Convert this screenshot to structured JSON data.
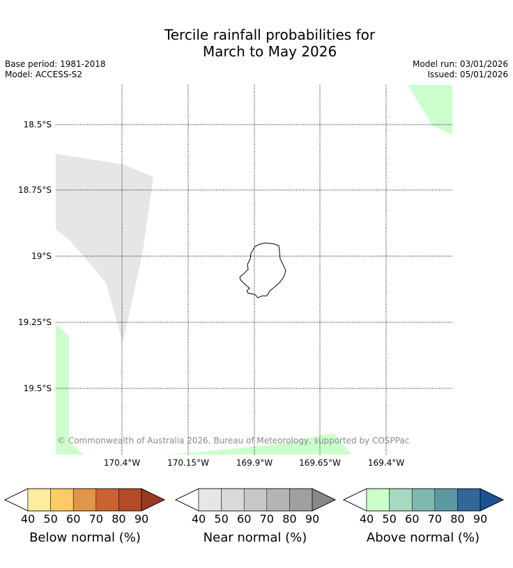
{
  "title": {
    "line1": "Tercile rainfall probabilities for",
    "line2": "March to May 2026"
  },
  "meta": {
    "base_period": "Base period: 1981-2018",
    "model": "Model: ACCESS-S2",
    "model_run": "Model run: 03/01/2026",
    "issued": "Issued: 05/01/2026"
  },
  "map": {
    "lat_labels": [
      "18.5°S",
      "18.75°S",
      "19°S",
      "19.25°S",
      "19.5°S"
    ],
    "lon_labels": [
      "170.4°W",
      "170.15°W",
      "169.9°W",
      "169.65°W",
      "169.4°W"
    ],
    "copyright": "© Commonwealth of Australia 2026, Bureau of Meteorology, supported by COSPPac",
    "colors": {
      "near_normal_fill": "#e6e6e6",
      "above_normal_fill": "#ccffcc",
      "coastline": "#000000"
    }
  },
  "legends": [
    {
      "title": "Below normal (%)",
      "ticks": [
        "40",
        "50",
        "60",
        "70",
        "80",
        "90"
      ],
      "colors": [
        "#ffffff",
        "#feec9f",
        "#fdca63",
        "#e19547",
        "#cc6232",
        "#b34c28",
        "#9a3922"
      ]
    },
    {
      "title": "Near normal (%)",
      "ticks": [
        "40",
        "50",
        "60",
        "70",
        "80",
        "90"
      ],
      "colors": [
        "#ffffff",
        "#e6e6e6",
        "#d9d9d9",
        "#c8c8c8",
        "#b4b4b4",
        "#a0a0a0",
        "#888888"
      ]
    },
    {
      "title": "Above normal (%)",
      "ticks": [
        "40",
        "50",
        "60",
        "70",
        "80",
        "90"
      ],
      "colors": [
        "#ffffff",
        "#ccffcc",
        "#a6d9bd",
        "#80b7b0",
        "#5b98a3",
        "#336699",
        "#1a5293"
      ]
    }
  ]
}
